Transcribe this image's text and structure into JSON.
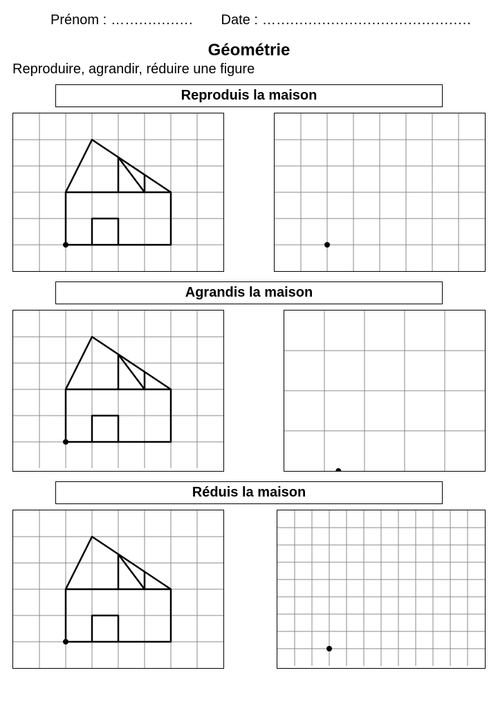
{
  "header": {
    "name_label": "Prénom :",
    "name_dots": "…...............",
    "date_label": "Date :",
    "date_dots": "…..........................................."
  },
  "title": "Géométrie",
  "subtitle": "Reproduire, agrandir, réduire une figure",
  "colors": {
    "grid_line": "#888888",
    "border": "#000000",
    "shape": "#000000",
    "dot": "#000000",
    "background": "#ffffff"
  },
  "house": {
    "base_cols": [
      2,
      6
    ],
    "base_rows": [
      3,
      5
    ],
    "roof_apex": [
      3,
      1
    ],
    "roof_right": [
      6,
      3
    ],
    "truss_left": [
      2,
      3,
      4,
      1.67
    ],
    "truss_mid_down": [
      4,
      1.67,
      4,
      3
    ],
    "truss_v1": [
      4,
      1.67,
      5,
      3
    ],
    "truss_v2": [
      5,
      3,
      5,
      2.33
    ],
    "door_cols": [
      3,
      4
    ],
    "door_rows": [
      4,
      5
    ],
    "start_dot": [
      2,
      5
    ],
    "line_width": 2.5
  },
  "sections": [
    {
      "title": "Reproduis la maison",
      "left_grid": {
        "cols": 8,
        "rows": 6,
        "cell": 38,
        "house": true
      },
      "right_grid": {
        "cols": 8,
        "rows": 6,
        "cell": 38,
        "house": false,
        "dot": [
          2,
          5
        ]
      }
    },
    {
      "title": "Agrandis la maison",
      "left_grid": {
        "cols": 8,
        "rows": 6,
        "cell": 38,
        "house": true
      },
      "right_grid": {
        "cols": 5,
        "rows": 4,
        "cell": 58,
        "house": false,
        "dot": [
          1.35,
          4
        ]
      }
    },
    {
      "title": "Réduis la maison",
      "left_grid": {
        "cols": 8,
        "rows": 6,
        "cell": 38,
        "house": true
      },
      "right_grid": {
        "cols": 12,
        "rows": 9,
        "cell": 25,
        "house": false,
        "dot": [
          3,
          8
        ]
      }
    }
  ]
}
